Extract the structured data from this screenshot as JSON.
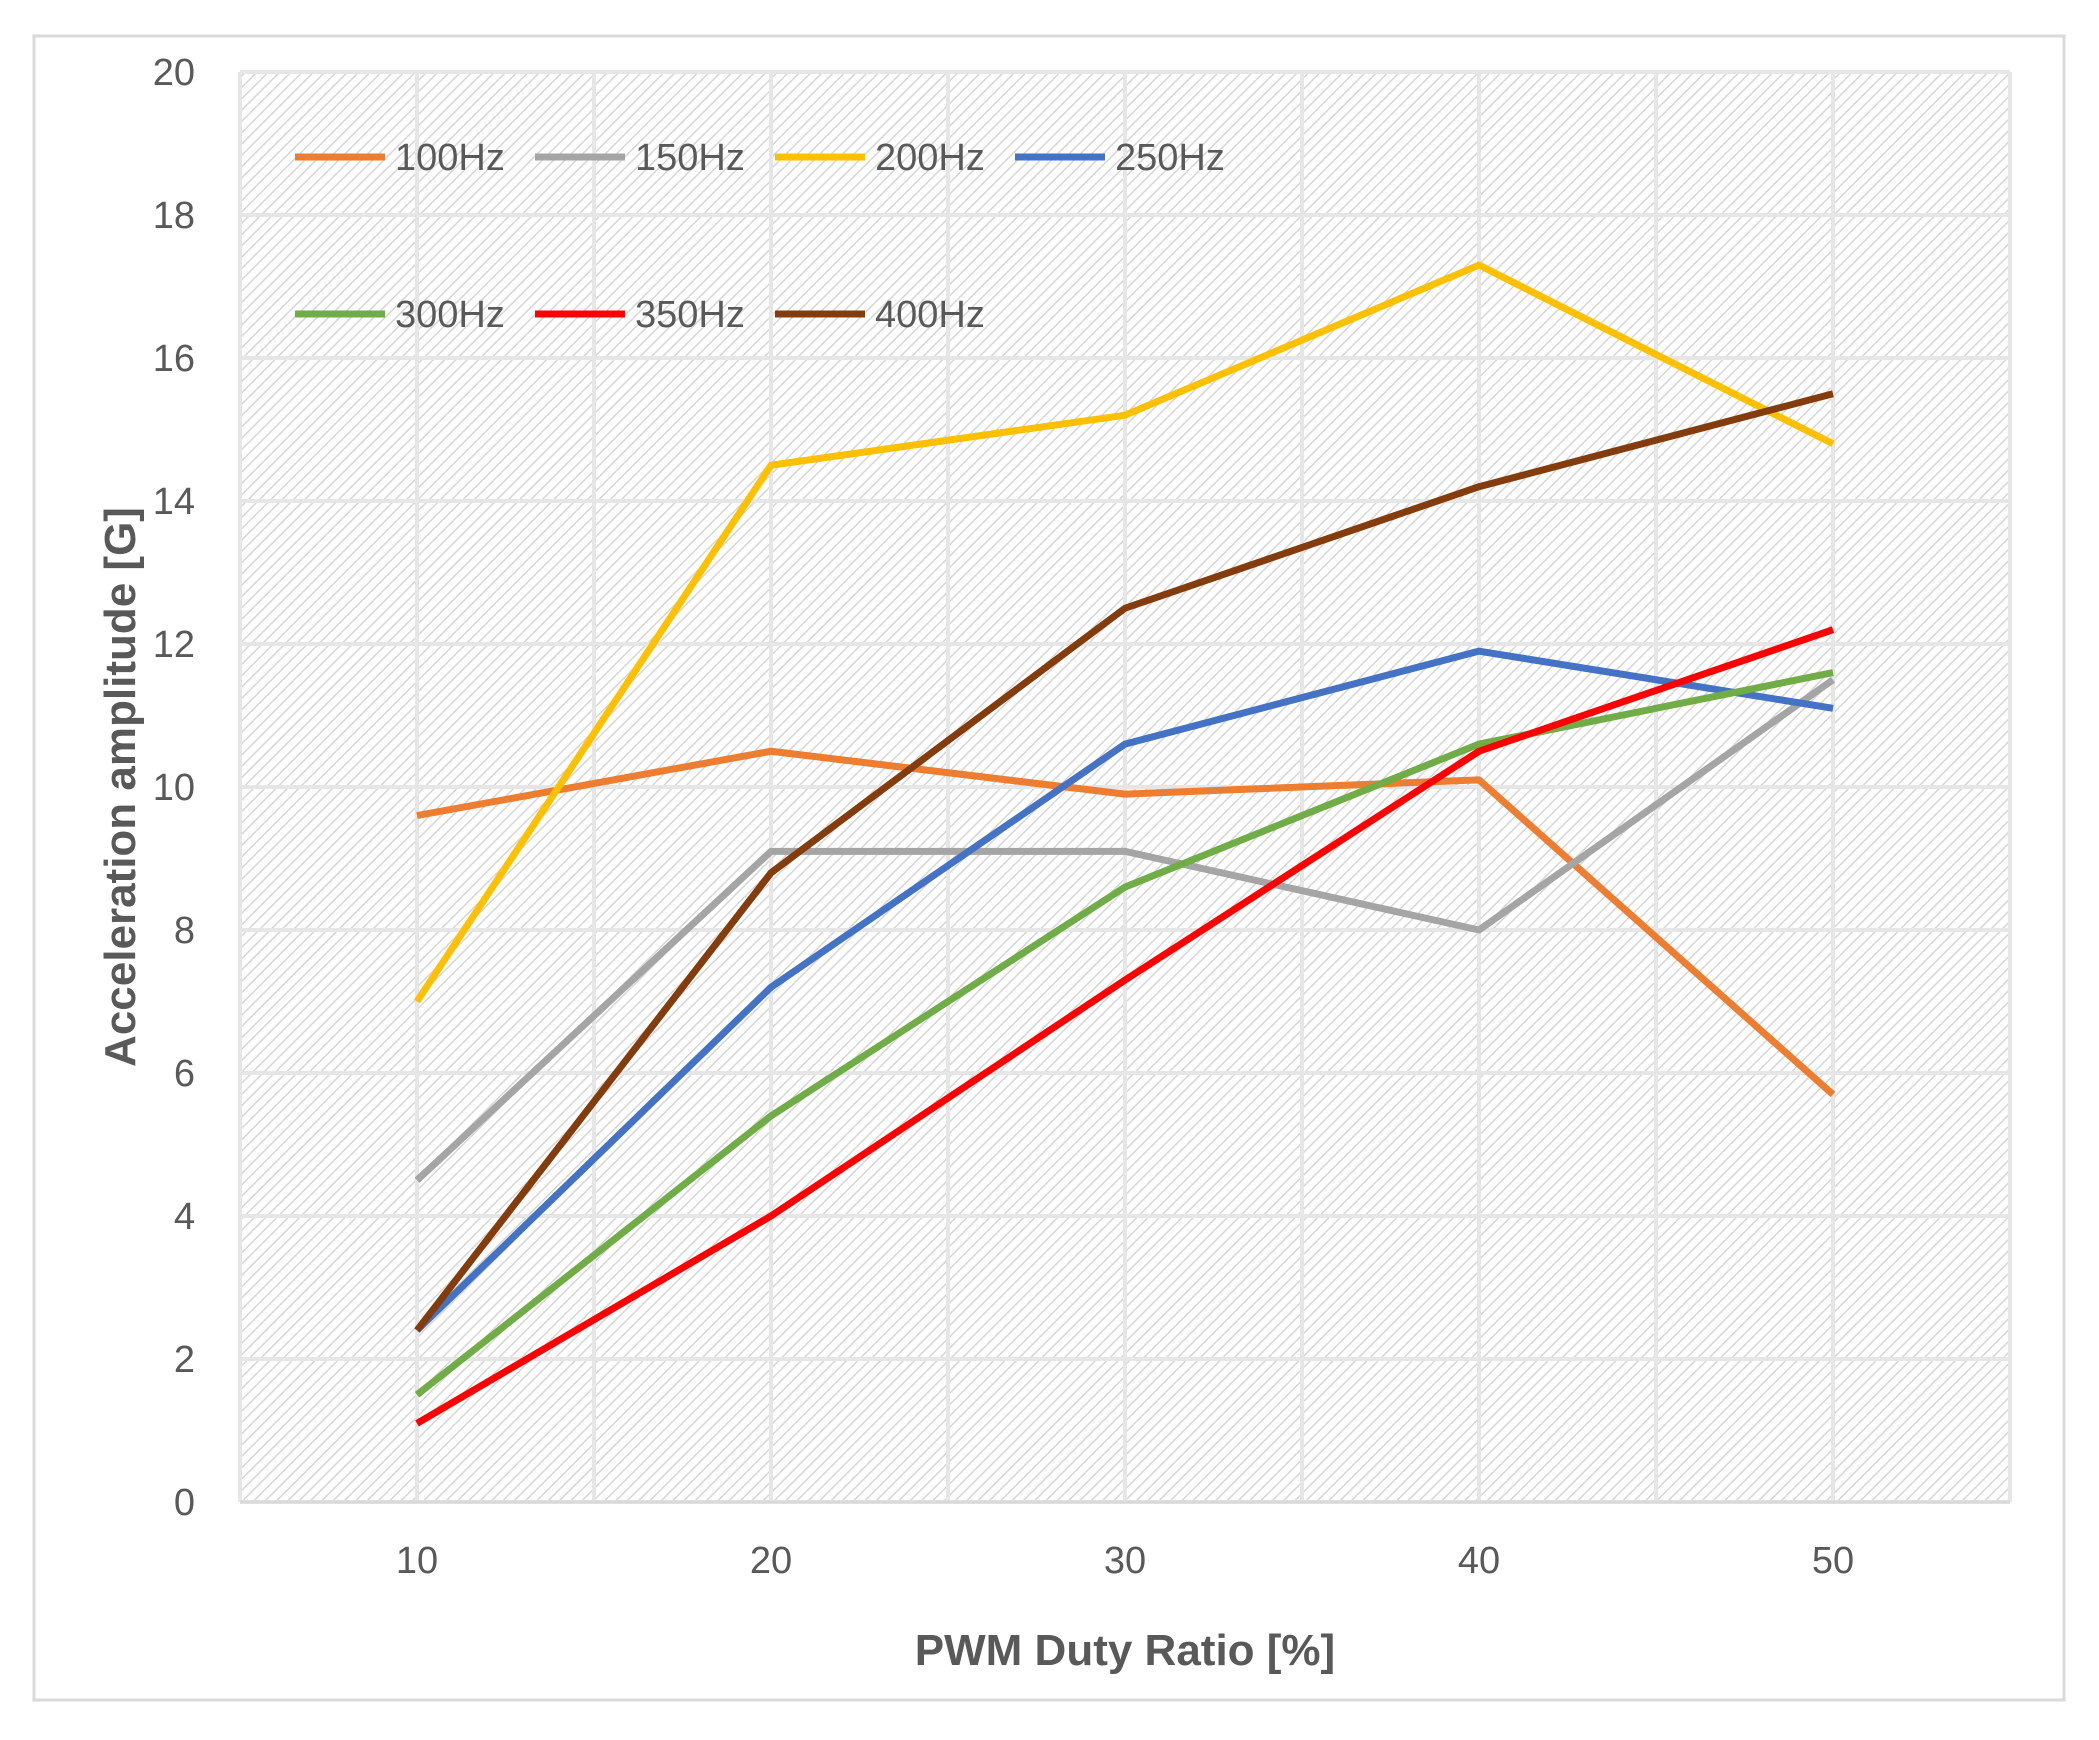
{
  "chart_data": {
    "type": "line",
    "title": "",
    "xlabel": "PWM Duty Ratio [%]",
    "ylabel": "Acceleration amplitude [G]",
    "categories": [
      "10",
      "20",
      "30",
      "40",
      "50"
    ],
    "x": [
      10,
      20,
      30,
      40,
      50
    ],
    "xlim": [
      5,
      55
    ],
    "ylim": [
      0,
      20
    ],
    "yticks": [
      0,
      2,
      4,
      6,
      8,
      10,
      12,
      14,
      16,
      18,
      20
    ],
    "grid": true,
    "legend_position": "top-left",
    "series": [
      {
        "name": "100Hz",
        "color": "#ED7D31",
        "values": [
          9.6,
          10.5,
          9.9,
          10.1,
          5.7
        ]
      },
      {
        "name": "150Hz",
        "color": "#A5A5A5",
        "values": [
          4.5,
          9.1,
          9.1,
          8.0,
          11.5
        ]
      },
      {
        "name": "200Hz",
        "color": "#FFC000",
        "values": [
          7.0,
          14.5,
          15.2,
          17.3,
          14.8
        ]
      },
      {
        "name": "250Hz",
        "color": "#4472C4",
        "values": [
          2.4,
          7.2,
          10.6,
          11.9,
          11.1
        ]
      },
      {
        "name": "300Hz",
        "color": "#70AD47",
        "values": [
          1.5,
          5.4,
          8.6,
          10.6,
          11.6
        ]
      },
      {
        "name": "350Hz",
        "color": "#FF0000",
        "values": [
          1.1,
          4.0,
          7.3,
          10.5,
          12.2
        ]
      },
      {
        "name": "400Hz",
        "color": "#843C0C",
        "values": [
          2.4,
          8.8,
          12.5,
          14.2,
          15.5
        ]
      }
    ]
  }
}
